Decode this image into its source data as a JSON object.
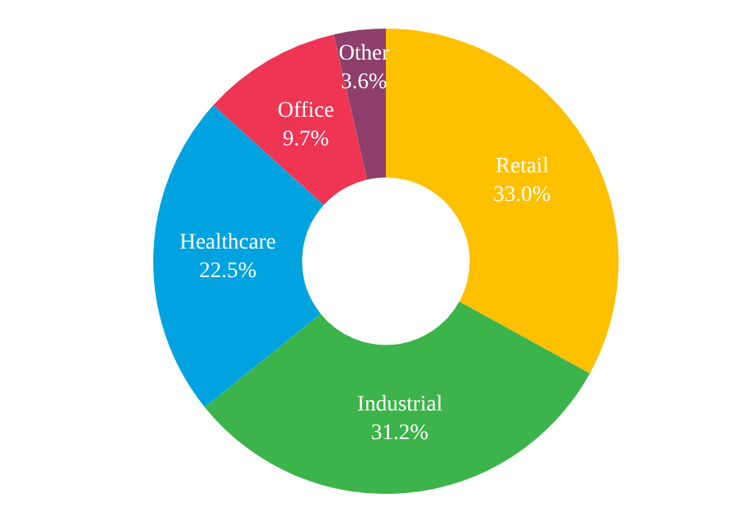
{
  "chart_data": {
    "type": "donut",
    "categories": [
      "Retail",
      "Industrial",
      "Healthcare",
      "Office",
      "Other"
    ],
    "values": [
      33.0,
      31.2,
      22.5,
      9.7,
      3.6
    ],
    "colors": [
      "#ffc000",
      "#3cb44b",
      "#00a3e0",
      "#ee3553",
      "#8e3f6b"
    ],
    "value_labels": [
      "33.0%",
      "31.2%",
      "22.5%",
      "9.7%",
      "3.6%"
    ],
    "legend": false
  }
}
